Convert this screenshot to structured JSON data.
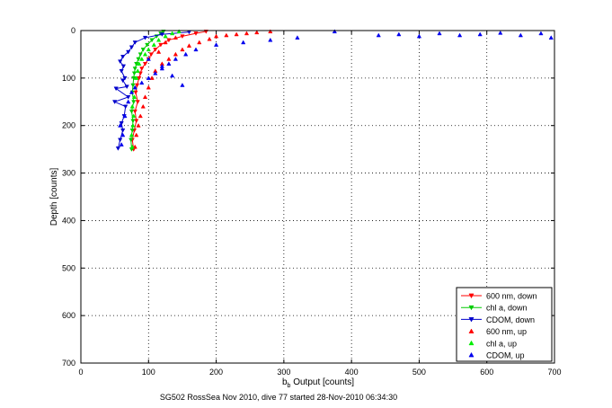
{
  "chart_data": {
    "type": "scatter",
    "xlabel_main": "b",
    "xlabel_sub": "b",
    "xlabel_rest": " Output [counts]",
    "ylabel": "Depth [counts]",
    "caption": "SG502 RossSea Nov 2010, dive 77 started 28-Nov-2010 06:34:30",
    "xlim": [
      0,
      700
    ],
    "ylim": [
      0,
      700
    ],
    "y_reversed": true,
    "grid": true,
    "legend_placement": "bottom-right",
    "x_ticks": [
      "0",
      "100",
      "200",
      "300",
      "400",
      "500",
      "600",
      "700"
    ],
    "y_ticks": [
      "0",
      "100",
      "200",
      "300",
      "400",
      "500",
      "600",
      "700"
    ],
    "series": [
      {
        "name": "600 nm, down",
        "color": "#ff0000",
        "marker": "triangle-down",
        "line": true,
        "x": [
          78,
          76,
          79,
          82,
          80,
          84,
          81,
          83,
          86,
          88,
          90,
          95,
          100,
          104,
          110,
          118,
          130,
          150,
          170,
          185
        ],
        "y": [
          250,
          230,
          210,
          190,
          170,
          150,
          130,
          115,
          100,
          90,
          80,
          70,
          60,
          50,
          40,
          30,
          20,
          12,
          6,
          2
        ]
      },
      {
        "name": "chl a, down",
        "color": "#00cc00",
        "marker": "triangle-down",
        "line": true,
        "x": [
          75,
          74,
          76,
          77,
          75,
          78,
          76,
          77,
          78,
          79,
          80,
          82,
          85,
          88,
          92,
          98,
          105,
          112,
          118,
          122
        ],
        "y": [
          250,
          230,
          210,
          190,
          170,
          150,
          130,
          115,
          100,
          90,
          80,
          70,
          60,
          50,
          40,
          30,
          20,
          12,
          6,
          2
        ]
      },
      {
        "name": "CDOM, down",
        "color": "#0000cc",
        "marker": "triangle-down",
        "line": true,
        "x": [
          55,
          58,
          62,
          60,
          64,
          66,
          50,
          70,
          52,
          68,
          62,
          65,
          60,
          63,
          58,
          62,
          70,
          75,
          80,
          95,
          120,
          160
        ],
        "y": [
          248,
          230,
          210,
          195,
          180,
          160,
          150,
          140,
          122,
          118,
          105,
          100,
          85,
          75,
          65,
          55,
          45,
          35,
          25,
          15,
          8,
          3
        ]
      },
      {
        "name": "600 nm, up",
        "color": "#ff0000",
        "marker": "triangle-up",
        "line": false,
        "x": [
          80,
          82,
          85,
          88,
          92,
          95,
          100,
          105,
          110,
          120,
          130,
          140,
          150,
          160,
          175,
          190,
          200,
          215,
          230,
          245,
          260,
          280,
          140,
          125,
          115
        ],
        "y": [
          245,
          220,
          200,
          180,
          160,
          140,
          120,
          100,
          85,
          70,
          60,
          50,
          40,
          32,
          25,
          18,
          12,
          10,
          8,
          6,
          4,
          2,
          15,
          25,
          45
        ]
      },
      {
        "name": "chl a, up",
        "color": "#00ee00",
        "marker": "triangle-up",
        "line": false,
        "x": [
          76,
          75,
          77,
          78,
          76,
          79,
          80,
          82,
          84,
          86,
          90,
          95,
          100,
          108,
          115,
          125,
          135,
          145
        ],
        "y": [
          245,
          220,
          200,
          180,
          160,
          140,
          120,
          100,
          85,
          70,
          60,
          50,
          40,
          30,
          20,
          12,
          6,
          2
        ]
      },
      {
        "name": "CDOM, up",
        "color": "#0000ee",
        "marker": "triangle-up",
        "line": false,
        "x": [
          60,
          62,
          58,
          65,
          70,
          75,
          80,
          90,
          100,
          110,
          120,
          130,
          140,
          155,
          170,
          200,
          240,
          280,
          320,
          375,
          440,
          470,
          500,
          530,
          560,
          590,
          620,
          650,
          680,
          695,
          100,
          120,
          135,
          150
        ],
        "y": [
          240,
          220,
          200,
          180,
          150,
          130,
          120,
          110,
          100,
          90,
          80,
          70,
          60,
          50,
          40,
          30,
          25,
          20,
          15,
          2,
          10,
          8,
          12,
          6,
          10,
          8,
          5,
          10,
          6,
          15,
          60,
          75,
          95,
          115
        ]
      }
    ]
  }
}
